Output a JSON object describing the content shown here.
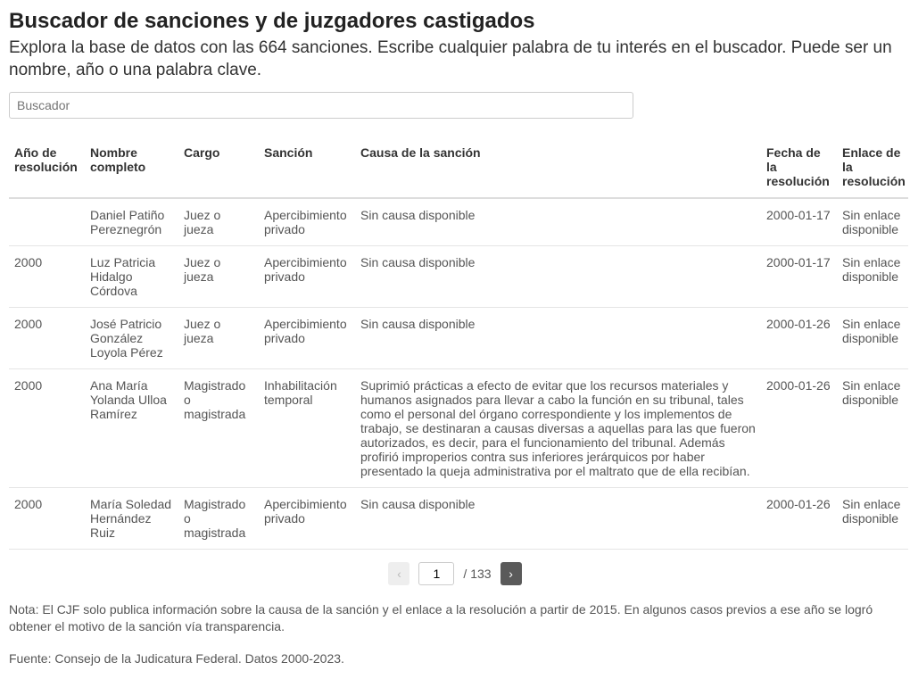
{
  "header": {
    "title": "Buscador de sanciones y de juzgadores castigados",
    "subtitle": "Explora la base de datos con las 664 sanciones. Escribe cualquier palabra de tu interés en el buscador. Puede ser un nombre, año o una palabra clave."
  },
  "search": {
    "placeholder": "Buscador",
    "value": ""
  },
  "table": {
    "columns": [
      "Año de resolución",
      "Nombre completo",
      "Cargo",
      "Sanción",
      "Causa de la sanción",
      "Fecha de la resolución",
      "Enlace de la resolución"
    ],
    "rows": [
      {
        "ano": "",
        "nombre": "Daniel Patiño Pereznegrón",
        "cargo": "Juez o jueza",
        "sancion": "Apercibimiento privado",
        "causa": "Sin causa disponible",
        "fecha": "2000-01-17",
        "enlace": "Sin enlace disponible"
      },
      {
        "ano": "2000",
        "nombre": "Luz Patricia Hidalgo Córdova",
        "cargo": "Juez o jueza",
        "sancion": "Apercibimiento privado",
        "causa": "Sin causa disponible",
        "fecha": "2000-01-17",
        "enlace": "Sin enlace disponible"
      },
      {
        "ano": "2000",
        "nombre": "José Patricio González Loyola Pérez",
        "cargo": "Juez o jueza",
        "sancion": "Apercibimiento privado",
        "causa": "Sin causa disponible",
        "fecha": "2000-01-26",
        "enlace": "Sin enlace disponible"
      },
      {
        "ano": "2000",
        "nombre": "Ana María Yolanda Ulloa Ramírez",
        "cargo": "Magistrado o magistrada",
        "sancion": "Inhabilitación temporal",
        "causa": "Suprimió prácticas a efecto de evitar que los recursos materiales y humanos asignados para llevar a cabo la función en su tribunal, tales como el personal del órgano correspondiente y los implementos de trabajo, se destinaran a causas diversas a aquellas para las que fueron autorizados, es decir, para el funcionamiento del tribunal. Además profirió improperios contra sus inferiores jerárquicos por haber presentado la queja administrativa por el maltrato que de ella recibían.",
        "fecha": "2000-01-26",
        "enlace": "Sin enlace disponible"
      },
      {
        "ano": "2000",
        "nombre": "María Soledad Hernández Ruiz",
        "cargo": "Magistrado o magistrada",
        "sancion": "Apercibimiento privado",
        "causa": "Sin causa disponible",
        "fecha": "2000-01-26",
        "enlace": "Sin enlace disponible"
      }
    ]
  },
  "pagination": {
    "prev_label": "‹",
    "next_label": "›",
    "current_page": "1",
    "separator": "/",
    "total_pages": "133"
  },
  "footer": {
    "note": "Nota: El CJF solo publica información sobre la causa de la sanción y el enlace a la resolución a partir de 2015. En algunos casos previos a ese año se logró obtener el motivo de la sanción vía transparencia.",
    "source": "Fuente: Consejo de la Judicatura Federal. Datos 2000-2023."
  }
}
